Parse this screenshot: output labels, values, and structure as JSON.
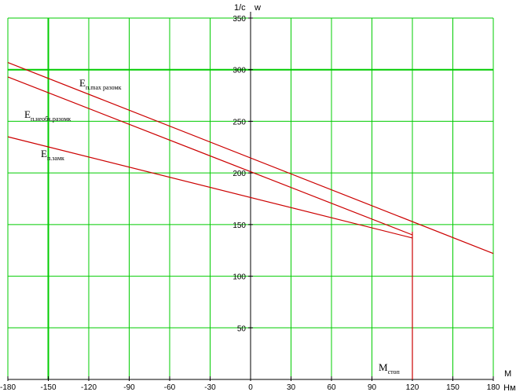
{
  "chart_data": {
    "type": "line",
    "xlabel_top": "M",
    "xlabel_unit": "Нм",
    "ylabel_left": "1/с",
    "ylabel_right": "w",
    "xlim": [
      -180,
      180
    ],
    "ylim": [
      0,
      350
    ],
    "x_ticks": [
      -180,
      -150,
      -120,
      -90,
      -60,
      -30,
      0,
      30,
      60,
      90,
      120,
      150,
      180
    ],
    "y_ticks": [
      50,
      100,
      150,
      200,
      250,
      300,
      350
    ],
    "grid": true,
    "highlight_x": -150,
    "highlight_y": 300,
    "colors": {
      "grid": "#00cc00",
      "curve": "#cc0000",
      "axis": "#000000"
    },
    "series": [
      {
        "main": "E",
        "sub": "п.max разомк",
        "x": [
          -180,
          180
        ],
        "y": [
          307,
          122
        ]
      },
      {
        "main": "E",
        "sub": "п.необх.разомк",
        "x": [
          -180,
          120
        ],
        "y": [
          293,
          140
        ]
      },
      {
        "main": "E",
        "sub": "п.замк",
        "x": [
          -180,
          120
        ],
        "y": [
          235,
          137
        ]
      },
      {
        "main": "",
        "sub": "",
        "x": [
          120,
          120
        ],
        "y": [
          0,
          143
        ]
      }
    ],
    "annotation": {
      "main": "M",
      "sub": "стоп",
      "x": 120
    }
  }
}
